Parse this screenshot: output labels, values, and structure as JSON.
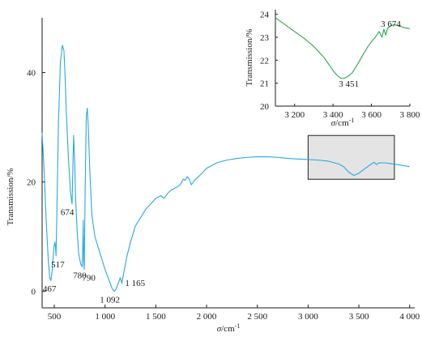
{
  "chart_data": [
    {
      "type": "line",
      "title": "",
      "xlabel": "σ/cm⁻¹",
      "xlabel_parts": {
        "symbol": "σ",
        "unit": "/cm",
        "exponent": "-1"
      },
      "ylabel": "Transmission/%",
      "xlim": [
        380,
        4050
      ],
      "ylim": [
        -3,
        50
      ],
      "x_ticks": [
        500,
        1000,
        1500,
        2000,
        2500,
        3000,
        3500,
        4000
      ],
      "x_tick_labels": [
        "500",
        "1 000",
        "1 500",
        "2 000",
        "2 500",
        "3 000",
        "3 500",
        "4 000"
      ],
      "y_ticks": [
        0,
        20,
        40
      ],
      "y_tick_labels": [
        "0",
        "20",
        "40"
      ],
      "grid": false,
      "line_color": "#29a8e0",
      "series": [
        {
          "x": [
            380,
            400,
            420,
            440,
            455,
            467,
            480,
            495,
            505,
            512,
            517,
            525,
            540,
            560,
            580,
            595,
            605,
            620,
            640,
            660,
            675,
            680,
            690,
            700,
            710,
            725,
            740,
            760,
            775,
            780,
            785,
            790,
            795,
            805,
            815,
            825,
            835,
            850,
            870,
            900,
            950,
            1000,
            1050,
            1070,
            1092,
            1110,
            1130,
            1150,
            1165,
            1185,
            1210,
            1250,
            1300,
            1350,
            1400,
            1450,
            1500,
            1550,
            1580,
            1600,
            1620,
            1650,
            1700,
            1740,
            1770,
            1790,
            1810,
            1830,
            1850,
            1870,
            1890,
            1910,
            1950,
            2000,
            2100,
            2200,
            2300,
            2400,
            2500,
            2600,
            2700,
            2800,
            2900,
            3000,
            3100,
            3200,
            3300,
            3350,
            3400,
            3451,
            3500,
            3550,
            3600,
            3650,
            3674,
            3700,
            3750,
            3800,
            3900,
            4000
          ],
          "y": [
            29,
            22,
            13,
            6,
            2.5,
            2,
            4,
            8,
            9,
            8,
            6.5,
            14,
            30,
            42,
            45,
            44,
            40,
            32,
            24,
            18,
            16,
            20,
            28.5,
            24,
            17,
            11,
            7,
            5,
            4.5,
            8,
            13,
            5.5,
            4,
            20,
            32,
            33.5,
            30,
            22,
            14,
            10,
            7,
            4,
            1.5,
            0.5,
            0,
            0.5,
            1.5,
            2.5,
            1.5,
            3.5,
            6,
            9,
            12,
            13.5,
            15,
            16,
            17,
            17.5,
            17,
            17.5,
            18,
            18.5,
            19,
            19.5,
            20.5,
            20.3,
            21,
            20.5,
            19.5,
            20,
            20.5,
            20.8,
            21.5,
            22.5,
            23.5,
            24,
            24.3,
            24.5,
            24.6,
            24.6,
            24.5,
            24.3,
            24.2,
            24.1,
            24,
            23.8,
            23.3,
            22.8,
            21.8,
            21.2,
            21.6,
            22.3,
            23,
            23.6,
            23.2,
            23.5,
            23.5,
            23.4,
            23.1,
            22.8
          ]
        }
      ],
      "annotations": [
        {
          "text": "467",
          "x": 467,
          "y": 2
        },
        {
          "text": "517",
          "x": 517,
          "y": 6.5
        },
        {
          "text": "674",
          "x": 674,
          "y": 16
        },
        {
          "text": "780",
          "x": 780,
          "y": 4.5
        },
        {
          "text": "790",
          "x": 790,
          "y": 5.5
        },
        {
          "text": "1 092",
          "x": 1092,
          "y": 0
        },
        {
          "text": "1 165",
          "x": 1165,
          "y": 2.5
        }
      ],
      "highlight_region": {
        "x": [
          3000,
          3850
        ],
        "y": [
          20.5,
          28.5
        ],
        "fill": "#e4e4e4"
      }
    },
    {
      "type": "line",
      "title": "",
      "xlabel": "σ/cm⁻¹",
      "xlabel_parts": {
        "symbol": "σ",
        "unit": "/cm",
        "exponent": "-1"
      },
      "ylabel": "Transmission/%",
      "xlim": [
        3100,
        3800
      ],
      "ylim": [
        20,
        24.2
      ],
      "x_ticks": [
        3200,
        3400,
        3600,
        3800
      ],
      "x_tick_labels": [
        "3 200",
        "3 400",
        "3 600",
        "3 800"
      ],
      "y_ticks": [
        20,
        21,
        22,
        23,
        24
      ],
      "y_tick_labels": [
        "20",
        "21",
        "22",
        "23",
        "24"
      ],
      "grid": false,
      "line_color": "#2aa84a",
      "series": [
        {
          "x": [
            3100,
            3150,
            3200,
            3250,
            3300,
            3350,
            3380,
            3400,
            3420,
            3440,
            3451,
            3470,
            3500,
            3530,
            3560,
            3590,
            3620,
            3640,
            3655,
            3665,
            3674,
            3685,
            3700,
            3720,
            3740,
            3760,
            3780,
            3800
          ],
          "y": [
            23.85,
            23.55,
            23.25,
            22.95,
            22.6,
            22.15,
            21.8,
            21.55,
            21.35,
            21.22,
            21.2,
            21.25,
            21.45,
            21.85,
            22.3,
            22.7,
            23.0,
            23.25,
            23.0,
            23.35,
            23.1,
            23.4,
            23.5,
            23.55,
            23.5,
            23.45,
            23.4,
            23.38
          ]
        }
      ],
      "annotations": [
        {
          "text": "3 451",
          "x": 3451,
          "y": 21.2
        },
        {
          "text": "3 674",
          "x": 3674,
          "y": 23.1
        }
      ]
    }
  ]
}
